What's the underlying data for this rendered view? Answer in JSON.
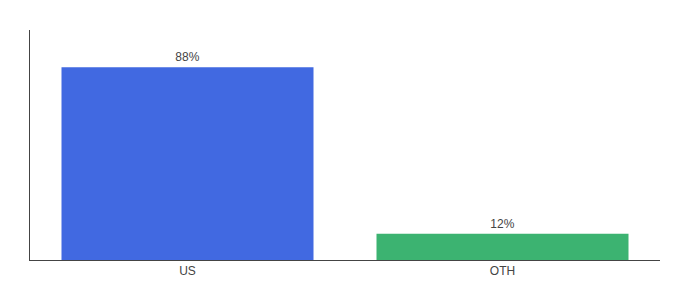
{
  "chart_data": {
    "type": "bar",
    "categories": [
      "US",
      "OTH"
    ],
    "values": [
      88,
      12
    ],
    "value_labels": [
      "88%",
      "12%"
    ],
    "colors": [
      "#4169E1",
      "#3CB371"
    ],
    "ylim": [
      0,
      105
    ],
    "yticks": [],
    "data_labels": true,
    "tick_labels": "x",
    "grid": false
  }
}
